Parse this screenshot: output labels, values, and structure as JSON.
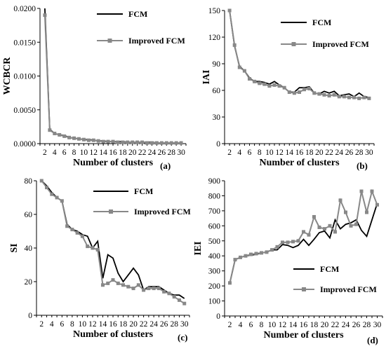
{
  "chart_data": [
    {
      "type": "line",
      "panel_label": "(a)",
      "xlabel": "Number of clusters",
      "ylabel": "WCBCR",
      "xlim": [
        1,
        31
      ],
      "ylim": [
        0,
        0.02
      ],
      "xticks": [
        2,
        4,
        6,
        8,
        10,
        12,
        14,
        16,
        18,
        20,
        22,
        24,
        26,
        28,
        30
      ],
      "yticks": [
        0,
        0.005,
        0.01,
        0.015,
        0.02
      ],
      "ytick_labels": [
        "0.0000",
        "0.0050",
        "0.0100",
        "0.0150",
        "0.0200"
      ],
      "legend_position": "top-right",
      "series": [
        {
          "name": "FCM",
          "color": "#000000",
          "marker": "none",
          "x": [
            2,
            3,
            4,
            5,
            6,
            7,
            8,
            9,
            10,
            11,
            12,
            13,
            14,
            15,
            16,
            17,
            18,
            19,
            20,
            21,
            22,
            23,
            24,
            25,
            26,
            27,
            28,
            29,
            30
          ],
          "values": [
            0.02,
            0.0021,
            0.0015,
            0.0013,
            0.0012,
            0.0009,
            0.0008,
            0.0007,
            0.0006,
            0.0006,
            0.0005,
            0.0004,
            0.0004,
            0.0003,
            0.0003,
            0.0003,
            0.0003,
            0.0002,
            0.0002,
            0.0002,
            0.0002,
            0.0002,
            0.0002,
            0.0001,
            0.0001,
            0.0001,
            0.0001,
            0.0001,
            0.0001
          ]
        },
        {
          "name": "Improved FCM",
          "color": "#888888",
          "marker": "square",
          "x": [
            2,
            3,
            4,
            5,
            6,
            7,
            8,
            9,
            10,
            11,
            12,
            13,
            14,
            15,
            16,
            17,
            18,
            19,
            20,
            21,
            22,
            23,
            24,
            25,
            26,
            27,
            28,
            29,
            30
          ],
          "values": [
            0.019,
            0.002,
            0.0015,
            0.0013,
            0.0011,
            0.0009,
            0.0008,
            0.0007,
            0.0006,
            0.0005,
            0.0005,
            0.0004,
            0.0003,
            0.0003,
            0.0003,
            0.0002,
            0.0002,
            0.0002,
            0.0002,
            0.0002,
            0.0002,
            0.0001,
            0.0001,
            0.0001,
            0.0001,
            0.0001,
            0.0001,
            0.0001,
            0.0001
          ]
        }
      ]
    },
    {
      "type": "line",
      "panel_label": "(b)",
      "xlabel": "Number of clusters",
      "ylabel": "IAI",
      "xlim": [
        1,
        31
      ],
      "ylim": [
        0,
        150
      ],
      "xticks": [
        2,
        4,
        6,
        8,
        10,
        12,
        14,
        16,
        18,
        20,
        22,
        24,
        26,
        28,
        30
      ],
      "yticks": [
        0,
        30,
        60,
        90,
        120,
        150
      ],
      "ytick_labels": [
        "0",
        "30",
        "60",
        "90",
        "120",
        "150"
      ],
      "legend_position": "top-right",
      "series": [
        {
          "name": "FCM",
          "color": "#000000",
          "marker": "none",
          "x": [
            2,
            3,
            4,
            5,
            6,
            7,
            8,
            9,
            10,
            11,
            12,
            13,
            14,
            15,
            16,
            17,
            18,
            19,
            20,
            21,
            22,
            23,
            24,
            25,
            26,
            27,
            28,
            29,
            30
          ],
          "values": [
            150,
            110,
            87,
            82,
            74,
            70,
            70,
            69,
            67,
            70,
            66,
            63,
            58,
            58,
            63,
            63,
            64,
            57,
            56,
            59,
            57,
            59,
            54,
            55,
            56,
            53,
            57,
            53,
            52
          ]
        },
        {
          "name": "Improved FCM",
          "color": "#888888",
          "marker": "square",
          "x": [
            2,
            3,
            4,
            5,
            6,
            7,
            8,
            9,
            10,
            11,
            12,
            13,
            14,
            15,
            16,
            17,
            18,
            19,
            20,
            21,
            22,
            23,
            24,
            25,
            26,
            27,
            28,
            29,
            30
          ],
          "values": [
            150,
            111,
            86,
            82,
            73,
            70,
            68,
            67,
            65,
            66,
            65,
            63,
            58,
            57,
            58,
            61,
            62,
            57,
            56,
            55,
            54,
            55,
            53,
            53,
            52,
            52,
            51,
            52,
            51
          ]
        }
      ]
    },
    {
      "type": "line",
      "panel_label": "(c)",
      "xlabel": "Number of clusters",
      "ylabel": "SI",
      "xlim": [
        1,
        31
      ],
      "ylim": [
        0,
        80
      ],
      "xticks": [
        2,
        4,
        6,
        8,
        10,
        12,
        14,
        16,
        18,
        20,
        22,
        24,
        26,
        28,
        30
      ],
      "yticks": [
        0,
        20,
        40,
        60,
        80
      ],
      "ytick_labels": [
        "0",
        "20",
        "40",
        "60",
        "80"
      ],
      "legend_position": "top-right",
      "series": [
        {
          "name": "FCM",
          "color": "#000000",
          "marker": "none",
          "x": [
            2,
            3,
            4,
            5,
            6,
            7,
            8,
            9,
            10,
            11,
            12,
            13,
            14,
            15,
            16,
            17,
            18,
            19,
            20,
            21,
            22,
            23,
            24,
            25,
            26,
            27,
            28,
            29,
            30
          ],
          "values": [
            80,
            77,
            73,
            70,
            68,
            54,
            51,
            50,
            48,
            47,
            40,
            44,
            22,
            36,
            34,
            25,
            20,
            24,
            28,
            24,
            15,
            17,
            17,
            17,
            15,
            13,
            12,
            12,
            10
          ]
        },
        {
          "name": "Improved FCM",
          "color": "#888888",
          "marker": "square",
          "x": [
            2,
            3,
            4,
            5,
            6,
            7,
            8,
            9,
            10,
            11,
            12,
            13,
            14,
            15,
            16,
            17,
            18,
            19,
            20,
            21,
            22,
            23,
            24,
            25,
            26,
            27,
            28,
            29,
            30
          ],
          "values": [
            80,
            76,
            72,
            70,
            68,
            53,
            51,
            49,
            47,
            41,
            40,
            39,
            18,
            19,
            21,
            19,
            18,
            17,
            16,
            18,
            15,
            16,
            16,
            16,
            14,
            13,
            11,
            9,
            7
          ]
        }
      ]
    },
    {
      "type": "line",
      "panel_label": "(d)",
      "xlabel": "Number of clusters",
      "ylabel": "IEI",
      "xlim": [
        1,
        31
      ],
      "ylim": [
        0,
        900
      ],
      "xticks": [
        2,
        4,
        6,
        8,
        10,
        12,
        14,
        16,
        18,
        20,
        22,
        24,
        26,
        28,
        30
      ],
      "yticks": [
        0,
        100,
        200,
        300,
        400,
        500,
        600,
        700,
        800,
        900
      ],
      "ytick_labels": [
        "0",
        "100",
        "200",
        "300",
        "400",
        "500",
        "600",
        "700",
        "800",
        "900"
      ],
      "legend_position": "bottom-right",
      "series": [
        {
          "name": "FCM",
          "color": "#000000",
          "marker": "none",
          "x": [
            2,
            3,
            4,
            5,
            6,
            7,
            8,
            9,
            10,
            11,
            12,
            13,
            14,
            15,
            16,
            17,
            18,
            19,
            20,
            21,
            22,
            23,
            24,
            25,
            26,
            27,
            28,
            29,
            30
          ],
          "values": [
            220,
            375,
            390,
            400,
            405,
            410,
            420,
            425,
            440,
            440,
            475,
            470,
            455,
            470,
            510,
            470,
            510,
            555,
            565,
            520,
            640,
            580,
            610,
            620,
            640,
            570,
            530,
            640,
            750
          ]
        },
        {
          "name": "Improved FCM",
          "color": "#888888",
          "marker": "square",
          "x": [
            2,
            3,
            4,
            5,
            6,
            7,
            8,
            9,
            10,
            11,
            12,
            13,
            14,
            15,
            16,
            17,
            18,
            19,
            20,
            21,
            22,
            23,
            24,
            25,
            26,
            27,
            28,
            29,
            30
          ],
          "values": [
            220,
            375,
            390,
            400,
            410,
            415,
            420,
            425,
            440,
            460,
            490,
            490,
            495,
            500,
            560,
            540,
            660,
            590,
            580,
            600,
            560,
            770,
            690,
            600,
            610,
            830,
            690,
            830,
            740
          ]
        }
      ]
    }
  ]
}
